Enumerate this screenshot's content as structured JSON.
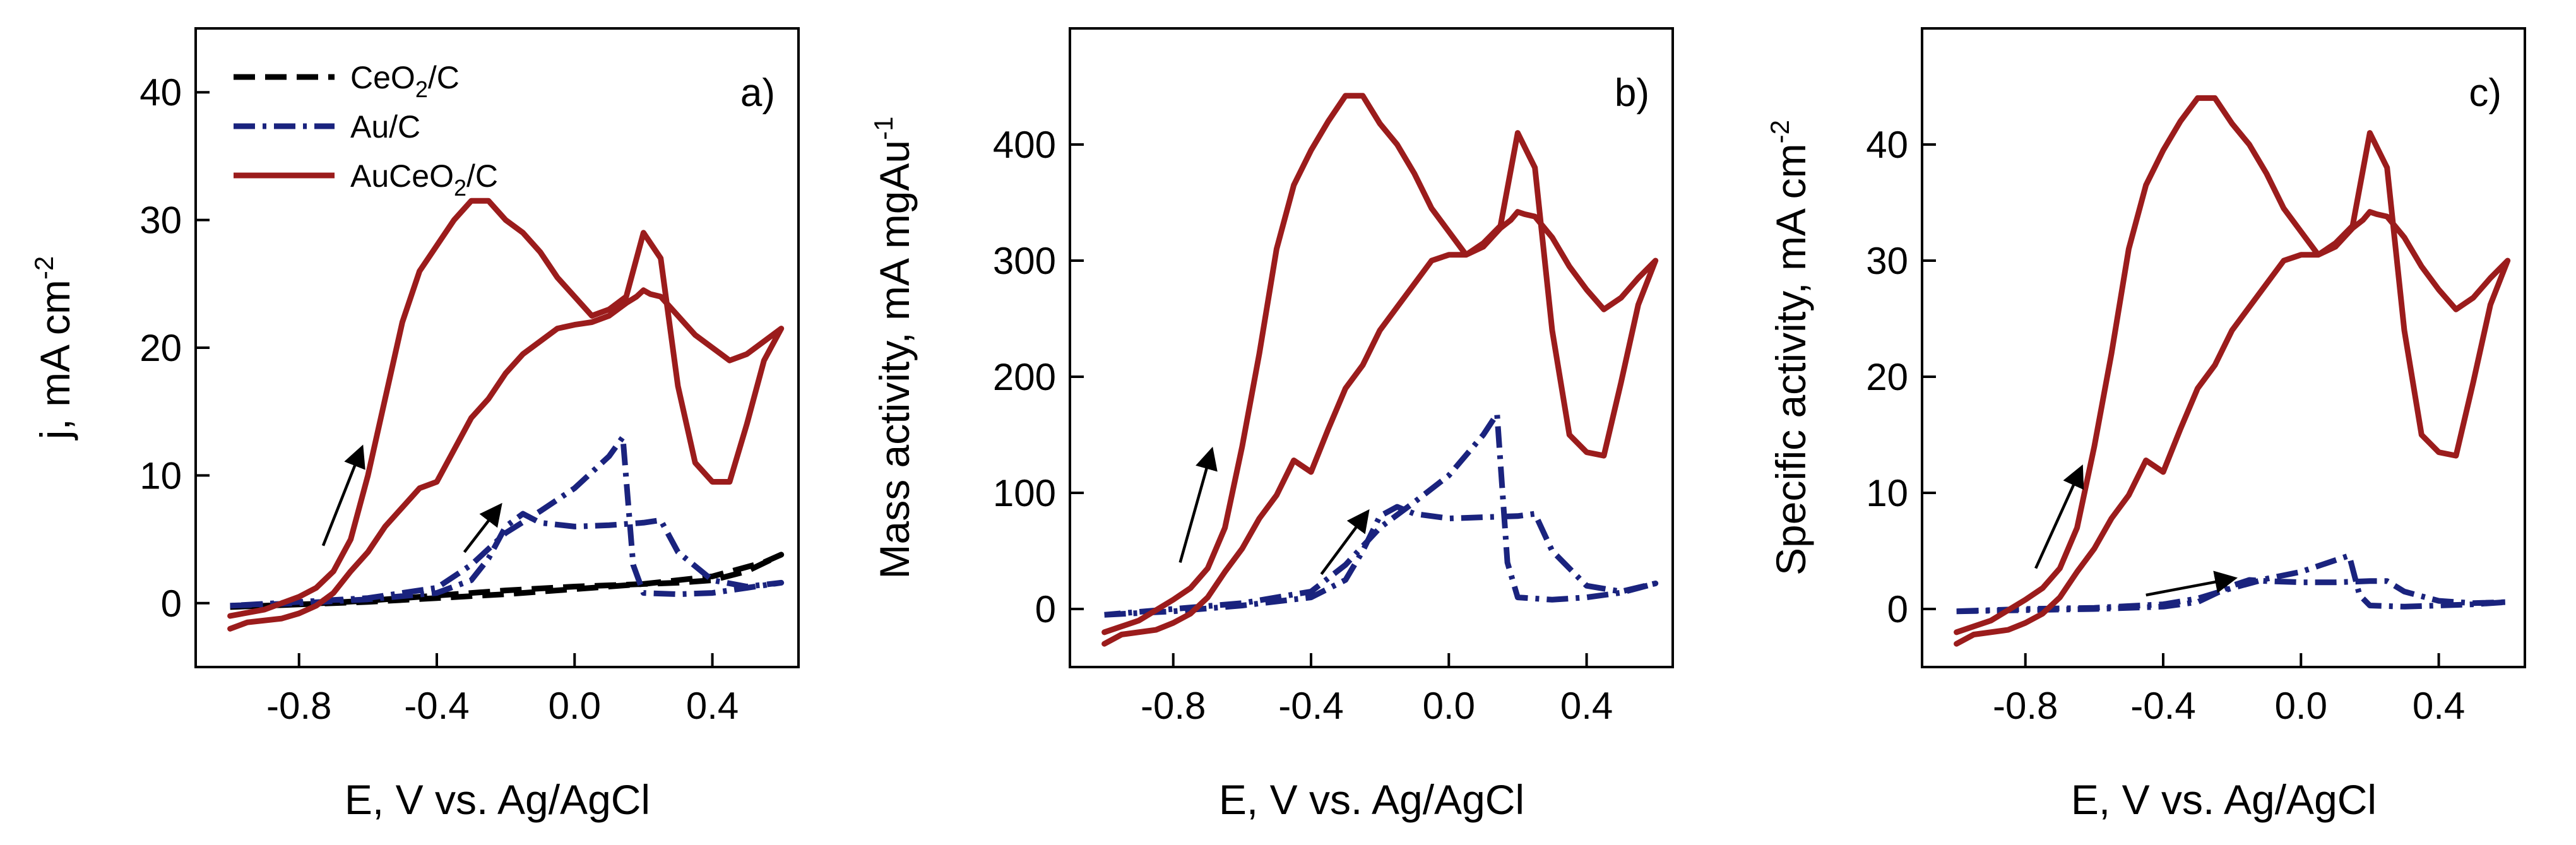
{
  "figure": {
    "colors": {
      "cerium": "#000000",
      "gold": "#1a237e",
      "composite": "#9b1c1c",
      "axis": "#000000"
    },
    "legend": {
      "placement": "top-left",
      "entries": [
        {
          "series": "CeO2/C",
          "base": "CeO",
          "sub": "2",
          "tail": "/C",
          "style": "dashed"
        },
        {
          "series": "Au/C",
          "base": "Au/C",
          "sub": "",
          "tail": "",
          "style": "dash-dot"
        },
        {
          "series": "AuCeO2/C",
          "base": "AuCeO",
          "sub": "2",
          "tail": "/C",
          "style": "solid"
        }
      ]
    }
  },
  "chart_data": [
    {
      "type": "line",
      "panel_label": "a)",
      "xlabel": "E, V vs. Ag/AgCl",
      "ylabel": {
        "base": "j, mA cm",
        "sup": "-2",
        "sub": ""
      },
      "xlim": [
        -1.1,
        0.65
      ],
      "ylim": [
        -5,
        45
      ],
      "xticks": [
        -0.8,
        -0.4,
        0.0,
        0.4
      ],
      "xticklabels": [
        "-0.8",
        "-0.4",
        "0.0",
        "0.4"
      ],
      "yticks": [
        0,
        10,
        20,
        30,
        40
      ],
      "yticklabels": [
        "0",
        "10",
        "20",
        "30",
        "40"
      ],
      "arrows": [
        {
          "from": [
            -0.73,
            4.5
          ],
          "to": [
            -0.62,
            12.0
          ]
        },
        {
          "from": [
            -0.32,
            4.0
          ],
          "to": [
            -0.22,
            7.5
          ]
        }
      ],
      "series": [
        {
          "name": "CeO2/C",
          "color": "cerium",
          "style": "dashed",
          "x": [
            -1.0,
            -0.8,
            -0.6,
            -0.4,
            -0.2,
            0.0,
            0.2,
            0.4,
            0.55,
            0.6,
            0.5,
            0.4,
            0.3,
            0.2,
            0.1,
            0.0,
            -0.2,
            -0.4,
            -0.6,
            -0.8,
            -1.0
          ],
          "y": [
            -0.3,
            -0.1,
            0.1,
            0.4,
            0.7,
            1.1,
            1.5,
            2.1,
            3.2,
            3.8,
            2.5,
            1.8,
            1.6,
            1.5,
            1.4,
            1.3,
            1.0,
            0.6,
            0.2,
            -0.1,
            -0.3
          ]
        },
        {
          "name": "Au/C",
          "color": "gold",
          "style": "dash-dot",
          "x": [
            -1.0,
            -0.8,
            -0.6,
            -0.4,
            -0.3,
            -0.25,
            -0.2,
            -0.15,
            -0.1,
            0.0,
            0.1,
            0.2,
            0.25,
            0.3,
            0.4,
            0.5,
            0.6,
            0.5,
            0.4,
            0.3,
            0.2,
            0.17,
            0.14,
            0.1,
            0.0,
            -0.1,
            -0.2,
            -0.3,
            -0.4,
            -0.6,
            -0.8,
            -1.0
          ],
          "y": [
            -0.2,
            0.0,
            0.3,
            0.8,
            1.8,
            3.5,
            6.0,
            7.0,
            6.3,
            6.0,
            6.1,
            6.3,
            6.5,
            4.0,
            1.8,
            1.3,
            1.6,
            1.2,
            0.8,
            0.7,
            0.8,
            3.0,
            13.0,
            11.5,
            9.0,
            7.2,
            5.5,
            3.0,
            1.2,
            0.4,
            0.1,
            -0.2
          ]
        },
        {
          "name": "AuCeO2/C",
          "color": "composite",
          "style": "solid",
          "x": [
            -1.0,
            -0.95,
            -0.85,
            -0.8,
            -0.75,
            -0.7,
            -0.65,
            -0.6,
            -0.55,
            -0.5,
            -0.45,
            -0.4,
            -0.35,
            -0.3,
            -0.25,
            -0.2,
            -0.15,
            -0.1,
            -0.05,
            0.0,
            0.05,
            0.1,
            0.15,
            0.18,
            0.2,
            0.22,
            0.25,
            0.3,
            0.35,
            0.4,
            0.45,
            0.5,
            0.55,
            0.6,
            0.55,
            0.5,
            0.45,
            0.4,
            0.35,
            0.3,
            0.25,
            0.2,
            0.15,
            0.1,
            0.05,
            0.0,
            -0.05,
            -0.1,
            -0.15,
            -0.2,
            -0.25,
            -0.3,
            -0.35,
            -0.4,
            -0.45,
            -0.5,
            -0.55,
            -0.6,
            -0.65,
            -0.7,
            -0.75,
            -0.8,
            -0.9,
            -1.0
          ],
          "y": [
            -2.0,
            -1.5,
            -1.2,
            -0.8,
            -0.2,
            0.8,
            2.5,
            4.0,
            6.0,
            7.5,
            9.0,
            9.5,
            12.0,
            14.5,
            16.0,
            18.0,
            19.5,
            20.5,
            21.5,
            21.8,
            22.0,
            22.5,
            23.5,
            24.0,
            24.5,
            24.2,
            24.0,
            22.5,
            21.0,
            20.0,
            19.0,
            19.5,
            20.5,
            21.5,
            19.0,
            14.0,
            9.5,
            9.5,
            11.0,
            17.0,
            27.0,
            29.0,
            24.0,
            23.0,
            22.5,
            24.0,
            25.5,
            27.5,
            29.0,
            30.0,
            31.5,
            31.5,
            30.0,
            28.0,
            26.0,
            22.0,
            16.0,
            10.0,
            5.0,
            2.5,
            1.2,
            0.5,
            -0.5,
            -1.0
          ]
        }
      ]
    },
    {
      "type": "line",
      "panel_label": "b)",
      "xlabel": "E, V vs. Ag/AgCl",
      "ylabel": {
        "base": "Mass activity, mA mgAu",
        "sup": "-1",
        "sub": ""
      },
      "xlim": [
        -1.1,
        0.65
      ],
      "ylim": [
        -50,
        500
      ],
      "xticks": [
        -0.8,
        -0.4,
        0.0,
        0.4
      ],
      "xticklabels": [
        "-0.8",
        "-0.4",
        "0.0",
        "0.4"
      ],
      "yticks": [
        0,
        100,
        200,
        300,
        400
      ],
      "yticklabels": [
        "0",
        "100",
        "200",
        "300",
        "400"
      ],
      "arrows": [
        {
          "from": [
            -0.78,
            40
          ],
          "to": [
            -0.69,
            135
          ]
        },
        {
          "from": [
            -0.37,
            30
          ],
          "to": [
            -0.24,
            82
          ]
        }
      ],
      "series": [
        {
          "name": "Au/C",
          "color": "gold",
          "style": "dash-dot",
          "x": [
            -1.0,
            -0.8,
            -0.6,
            -0.4,
            -0.3,
            -0.25,
            -0.2,
            -0.15,
            -0.1,
            0.0,
            0.1,
            0.2,
            0.25,
            0.3,
            0.4,
            0.5,
            0.6,
            0.5,
            0.4,
            0.3,
            0.2,
            0.17,
            0.14,
            0.1,
            0.0,
            -0.1,
            -0.2,
            -0.3,
            -0.4,
            -0.6,
            -0.8,
            -1.0
          ],
          "y": [
            -5,
            -2,
            3,
            10,
            25,
            50,
            80,
            88,
            82,
            78,
            79,
            80,
            82,
            50,
            20,
            15,
            22,
            14,
            10,
            8,
            10,
            40,
            168,
            150,
            115,
            92,
            70,
            38,
            15,
            5,
            0,
            -5
          ]
        },
        {
          "name": "AuCeO2/C",
          "color": "composite",
          "style": "solid",
          "x": [
            -1.0,
            -0.95,
            -0.85,
            -0.8,
            -0.75,
            -0.7,
            -0.65,
            -0.6,
            -0.55,
            -0.5,
            -0.45,
            -0.4,
            -0.35,
            -0.3,
            -0.25,
            -0.2,
            -0.15,
            -0.1,
            -0.05,
            0.0,
            0.05,
            0.1,
            0.15,
            0.18,
            0.2,
            0.22,
            0.25,
            0.3,
            0.35,
            0.4,
            0.45,
            0.5,
            0.55,
            0.6,
            0.55,
            0.5,
            0.45,
            0.4,
            0.35,
            0.3,
            0.25,
            0.2,
            0.15,
            0.1,
            0.05,
            0.0,
            -0.05,
            -0.1,
            -0.15,
            -0.2,
            -0.25,
            -0.3,
            -0.35,
            -0.4,
            -0.45,
            -0.5,
            -0.55,
            -0.6,
            -0.65,
            -0.7,
            -0.75,
            -0.8,
            -0.9,
            -1.0
          ],
          "y": [
            -30,
            -22,
            -18,
            -12,
            -4,
            10,
            32,
            52,
            78,
            98,
            128,
            118,
            155,
            190,
            210,
            240,
            260,
            280,
            300,
            305,
            305,
            312,
            328,
            335,
            342,
            340,
            338,
            320,
            295,
            275,
            258,
            268,
            285,
            300,
            262,
            195,
            132,
            135,
            150,
            240,
            380,
            410,
            330,
            315,
            305,
            325,
            345,
            375,
            400,
            418,
            442,
            442,
            420,
            395,
            365,
            310,
            220,
            140,
            70,
            35,
            18,
            8,
            -10,
            -20
          ]
        }
      ]
    },
    {
      "type": "line",
      "panel_label": "c)",
      "xlabel": "E, V vs. Ag/AgCl",
      "ylabel": {
        "base": "Specific activity, mA cm",
        "sup": "-2",
        "sub": ""
      },
      "xlim": [
        -1.1,
        0.65
      ],
      "ylim": [
        -5,
        50
      ],
      "xticks": [
        -0.8,
        -0.4,
        0.0,
        0.4
      ],
      "xticklabels": [
        "-0.8",
        "-0.4",
        "0.0",
        "0.4"
      ],
      "yticks": [
        0,
        10,
        20,
        30,
        40
      ],
      "yticklabels": [
        "0",
        "10",
        "20",
        "30",
        "40"
      ],
      "arrows": [
        {
          "from": [
            -0.77,
            3.5
          ],
          "to": [
            -0.64,
            12.0
          ]
        },
        {
          "from": [
            -0.45,
            1.2
          ],
          "to": [
            -0.2,
            2.6
          ]
        }
      ],
      "series": [
        {
          "name": "Au/C",
          "color": "gold",
          "style": "dash-dot",
          "x": [
            -1.0,
            -0.8,
            -0.6,
            -0.4,
            -0.3,
            -0.2,
            -0.15,
            -0.1,
            0.0,
            0.1,
            0.2,
            0.25,
            0.3,
            0.4,
            0.5,
            0.6,
            0.5,
            0.4,
            0.3,
            0.2,
            0.17,
            0.14,
            0.1,
            0.0,
            -0.1,
            -0.2,
            -0.3,
            -0.4,
            -0.6,
            -0.8,
            -1.0
          ],
          "y": [
            -0.2,
            -0.1,
            0.0,
            0.2,
            0.6,
            2.0,
            2.5,
            2.4,
            2.3,
            2.3,
            2.4,
            2.4,
            1.5,
            0.7,
            0.5,
            0.6,
            0.4,
            0.3,
            0.2,
            0.3,
            1.2,
            4.6,
            4.2,
            3.2,
            2.6,
            1.8,
            0.9,
            0.4,
            0.1,
            0.0,
            -0.2
          ]
        },
        {
          "name": "AuCeO2/C",
          "color": "composite",
          "style": "solid",
          "x": [
            -1.0,
            -0.95,
            -0.85,
            -0.8,
            -0.75,
            -0.7,
            -0.65,
            -0.6,
            -0.55,
            -0.5,
            -0.45,
            -0.4,
            -0.35,
            -0.3,
            -0.25,
            -0.2,
            -0.15,
            -0.1,
            -0.05,
            0.0,
            0.05,
            0.1,
            0.15,
            0.18,
            0.2,
            0.22,
            0.25,
            0.3,
            0.35,
            0.4,
            0.45,
            0.5,
            0.55,
            0.6,
            0.55,
            0.5,
            0.45,
            0.4,
            0.35,
            0.3,
            0.25,
            0.2,
            0.15,
            0.1,
            0.05,
            0.0,
            -0.05,
            -0.1,
            -0.15,
            -0.2,
            -0.25,
            -0.3,
            -0.35,
            -0.4,
            -0.45,
            -0.5,
            -0.55,
            -0.6,
            -0.65,
            -0.7,
            -0.75,
            -0.8,
            -0.9,
            -1.0
          ],
          "y": [
            -3.0,
            -2.2,
            -1.8,
            -1.2,
            -0.4,
            1.0,
            3.2,
            5.2,
            7.8,
            9.8,
            12.8,
            11.8,
            15.5,
            19.0,
            21.0,
            24.0,
            26.0,
            28.0,
            30.0,
            30.5,
            30.5,
            31.2,
            32.8,
            33.5,
            34.2,
            34.0,
            33.8,
            32.0,
            29.5,
            27.5,
            25.8,
            26.8,
            28.5,
            30.0,
            26.2,
            19.5,
            13.2,
            13.5,
            15.0,
            24.0,
            38.0,
            41.0,
            33.0,
            31.5,
            30.5,
            32.5,
            34.5,
            37.5,
            40.0,
            41.8,
            44.0,
            44.0,
            42.0,
            39.5,
            36.5,
            31.0,
            22.0,
            14.0,
            7.0,
            3.5,
            1.8,
            0.8,
            -1.0,
            -2.0
          ]
        }
      ]
    }
  ]
}
